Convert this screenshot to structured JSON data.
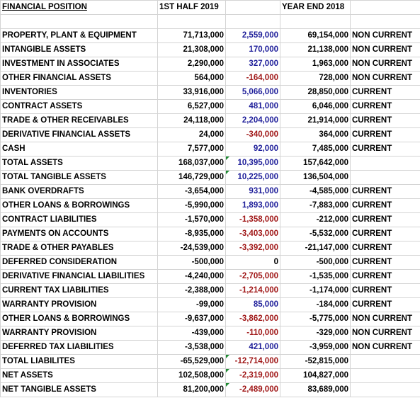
{
  "header": {
    "title": "FINANCIAL POSITION",
    "col_h1": "1ST HALF 2019",
    "col_change": "",
    "col_ye": "YEAR END 2018",
    "col_class": ""
  },
  "rows": [
    {
      "label": "PROPERTY, PLANT & EQUIPMENT",
      "h1": "71,713,000",
      "change": "2,559,000",
      "change_color": "blue",
      "ye": "69,154,000",
      "class": "NON CURRENT",
      "flag": false
    },
    {
      "label": "INTANGIBLE ASSETS",
      "h1": "21,308,000",
      "change": "170,000",
      "change_color": "blue",
      "ye": "21,138,000",
      "class": "NON CURRENT",
      "flag": false
    },
    {
      "label": "INVESTMENT IN ASSOCIATES",
      "h1": "2,290,000",
      "change": "327,000",
      "change_color": "blue",
      "ye": "1,963,000",
      "class": "NON CURRENT",
      "flag": false
    },
    {
      "label": "OTHER FINANCIAL ASSETS",
      "h1": "564,000",
      "change": "-164,000",
      "change_color": "red",
      "ye": "728,000",
      "class": "NON CURRENT",
      "flag": false
    },
    {
      "label": "INVENTORIES",
      "h1": "33,916,000",
      "change": "5,066,000",
      "change_color": "blue",
      "ye": "28,850,000",
      "class": "CURRENT",
      "flag": false
    },
    {
      "label": "CONTRACT ASSETS",
      "h1": "6,527,000",
      "change": "481,000",
      "change_color": "blue",
      "ye": "6,046,000",
      "class": "CURRENT",
      "flag": false
    },
    {
      "label": "TRADE & OTHER RECEIVABLES",
      "h1": "24,118,000",
      "change": "2,204,000",
      "change_color": "blue",
      "ye": "21,914,000",
      "class": "CURRENT",
      "flag": false
    },
    {
      "label": "DERIVATIVE FINANCIAL ASSETS",
      "h1": "24,000",
      "change": "-340,000",
      "change_color": "red",
      "ye": "364,000",
      "class": "CURRENT",
      "flag": false
    },
    {
      "label": "CASH",
      "h1": "7,577,000",
      "change": "92,000",
      "change_color": "blue",
      "ye": "7,485,000",
      "class": "CURRENT",
      "flag": false
    },
    {
      "label": "TOTAL ASSETS",
      "h1": "168,037,000",
      "change": "10,395,000",
      "change_color": "blue",
      "ye": "157,642,000",
      "class": "",
      "flag": true
    },
    {
      "label": "TOTAL TANGIBLE ASSETS",
      "h1": "146,729,000",
      "change": "10,225,000",
      "change_color": "blue",
      "ye": "136,504,000",
      "class": "",
      "flag": true
    },
    {
      "label": "BANK OVERDRAFTS",
      "h1": "-3,654,000",
      "change": "931,000",
      "change_color": "blue",
      "ye": "-4,585,000",
      "class": "CURRENT",
      "flag": false
    },
    {
      "label": "OTHER LOANS & BORROWINGS",
      "h1": "-5,990,000",
      "change": "1,893,000",
      "change_color": "blue",
      "ye": "-7,883,000",
      "class": "CURRENT",
      "flag": false
    },
    {
      "label": "CONTRACT LIABILITIES",
      "h1": "-1,570,000",
      "change": "-1,358,000",
      "change_color": "red",
      "ye": "-212,000",
      "class": "CURRENT",
      "flag": false
    },
    {
      "label": "PAYMENTS ON ACCOUNTS",
      "h1": "-8,935,000",
      "change": "-3,403,000",
      "change_color": "red",
      "ye": "-5,532,000",
      "class": "CURRENT",
      "flag": false
    },
    {
      "label": "TRADE & OTHER PAYABLES",
      "h1": "-24,539,000",
      "change": "-3,392,000",
      "change_color": "red",
      "ye": "-21,147,000",
      "class": "CURRENT",
      "flag": false
    },
    {
      "label": "DEFERRED CONSIDERATION",
      "h1": "-500,000",
      "change": "0",
      "change_color": "black",
      "ye": "-500,000",
      "class": "CURRENT",
      "flag": false
    },
    {
      "label": "DERIVATIVE FINANCIAL LIABILITIES",
      "h1": "-4,240,000",
      "change": "-2,705,000",
      "change_color": "red",
      "ye": "-1,535,000",
      "class": "CURRENT",
      "flag": false
    },
    {
      "label": "CURRENT TAX LIABILITIES",
      "h1": "-2,388,000",
      "change": "-1,214,000",
      "change_color": "red",
      "ye": "-1,174,000",
      "class": "CURRENT",
      "flag": false
    },
    {
      "label": "WARRANTY PROVISION",
      "h1": "-99,000",
      "change": "85,000",
      "change_color": "blue",
      "ye": "-184,000",
      "class": "CURRENT",
      "flag": false
    },
    {
      "label": "OTHER LOANS & BORROWINGS",
      "h1": "-9,637,000",
      "change": "-3,862,000",
      "change_color": "red",
      "ye": "-5,775,000",
      "class": "NON CURRENT",
      "flag": false
    },
    {
      "label": "WARRANTY PROVISION",
      "h1": "-439,000",
      "change": "-110,000",
      "change_color": "red",
      "ye": "-329,000",
      "class": "NON CURRENT",
      "flag": false
    },
    {
      "label": "DEFERRED TAX LIABILITIES",
      "h1": "-3,538,000",
      "change": "421,000",
      "change_color": "blue",
      "ye": "-3,959,000",
      "class": "NON CURRENT",
      "flag": false
    },
    {
      "label": "TOTAL LIABILITES",
      "h1": "-65,529,000",
      "change": "-12,714,000",
      "change_color": "red",
      "ye": "-52,815,000",
      "class": "",
      "flag": true
    },
    {
      "label": "NET ASSETS",
      "h1": "102,508,000",
      "change": "-2,319,000",
      "change_color": "red",
      "ye": "104,827,000",
      "class": "",
      "flag": true
    },
    {
      "label": "NET TANGIBLE ASSETS",
      "h1": "81,200,000",
      "change": "-2,489,000",
      "change_color": "red",
      "ye": "83,689,000",
      "class": "",
      "flag": true
    }
  ],
  "colors": {
    "positive_change": "#1f1f9a",
    "negative_change": "#a01818",
    "gridline": "#d4d4d4",
    "comment_flag": "#1e8a32"
  }
}
